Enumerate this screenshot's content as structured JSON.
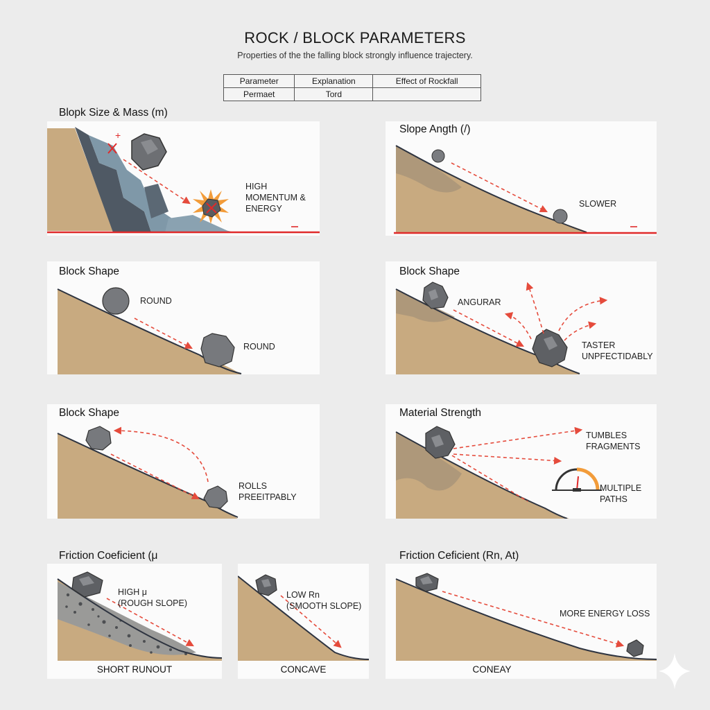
{
  "header": {
    "title": "ROCK / BLOCK PARAMETERS",
    "subtitle": "Properties of the the falling block strongly influence trajectery."
  },
  "table": {
    "headers": [
      "Parameter",
      "Explanation",
      "Effect of Rockfall"
    ],
    "rows": [
      [
        "Permaet",
        "Tord",
        ""
      ]
    ]
  },
  "panels": {
    "size_mass": {
      "label": "Blopk Size & Mass (m)",
      "text_lines": [
        "HIGH",
        "MOMENTUM &",
        "ENERGY"
      ],
      "plus": "+",
      "minus": "–"
    },
    "slope_angle": {
      "label": "Slope Angth (/)",
      "text": "SLOWER",
      "minus": "–"
    },
    "shape_round": {
      "label": "Block Shape",
      "text_top": "ROUND",
      "text_bottom": "ROUND"
    },
    "shape_angular": {
      "label": "Block Shape",
      "text_angular": "ANGURAR",
      "text_lines": [
        "TASTER",
        "UNPFECTIDABLY"
      ]
    },
    "shape_rolls": {
      "label": "Block Shape",
      "text_lines": [
        "ROLLS",
        "PREEITPABLY"
      ]
    },
    "material": {
      "label": "Material Strength",
      "text_top": [
        "TUMBLES",
        "FRAGMENTS"
      ],
      "text_bottom": [
        "MULTIPLE",
        "PATHS"
      ]
    },
    "friction_high": {
      "label": "Friction Coeficient (μ",
      "text_lines": [
        "HIGH μ",
        "(ROUGH SLOPE)"
      ],
      "bottom": "SHORT RUNOUT"
    },
    "friction_low": {
      "text_lines": [
        "LOW Rn",
        "(SMOOTH SLOPE)"
      ],
      "bottom": "CONCAVE"
    },
    "friction_right": {
      "label": "Friction Ceficient (Rn, At)",
      "text": "MORE ENERGY LOSS",
      "bottom": "CONEAY"
    }
  },
  "colors": {
    "soil": "#c8aa80",
    "rock": "#6d6f73",
    "arrow": "#e54b3c",
    "line": "#e02a2a",
    "cliff": "#7f98a8"
  }
}
